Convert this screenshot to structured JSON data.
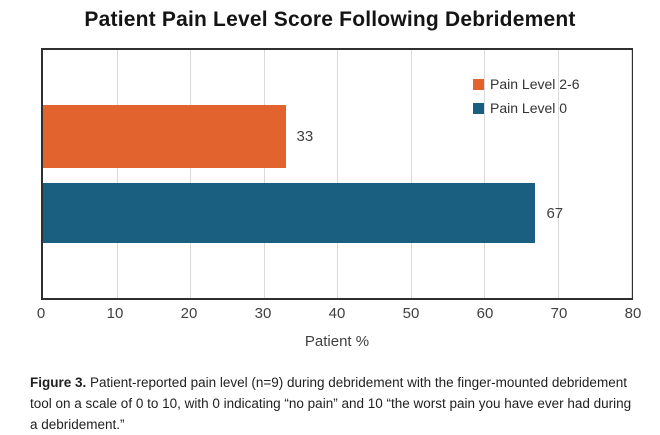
{
  "chart_data": {
    "type": "bar",
    "orientation": "horizontal",
    "title": "Patient Pain Level Score Following Debridement",
    "categories": [
      "Pain Level 2-6",
      "Pain Level 0"
    ],
    "values": [
      33,
      67
    ],
    "data_labels": [
      "33",
      "67"
    ],
    "colors": [
      "#e2632e",
      "#1a5f7f"
    ],
    "xlabel": "Patient %",
    "xlim": [
      0,
      80
    ],
    "xticks": [
      0,
      10,
      20,
      30,
      40,
      50,
      60,
      70,
      80
    ],
    "grid": "vertical-gridlines",
    "gridline_color": "#d9d9d9",
    "legend_position": "top-right-inside",
    "legend": [
      {
        "label": "Pain Level 2-6",
        "color": "#e2632e"
      },
      {
        "label": "Pain Level 0",
        "color": "#1a5f7f"
      }
    ]
  },
  "caption": {
    "label": "Figure 3.",
    "text": " Patient-reported pain level (n=9) during debridement with the finger-mounted debridement tool on a scale of 0 to 10, with 0 indicating “no pain” and 10 “the worst pain you have ever had during a debridement.”"
  }
}
